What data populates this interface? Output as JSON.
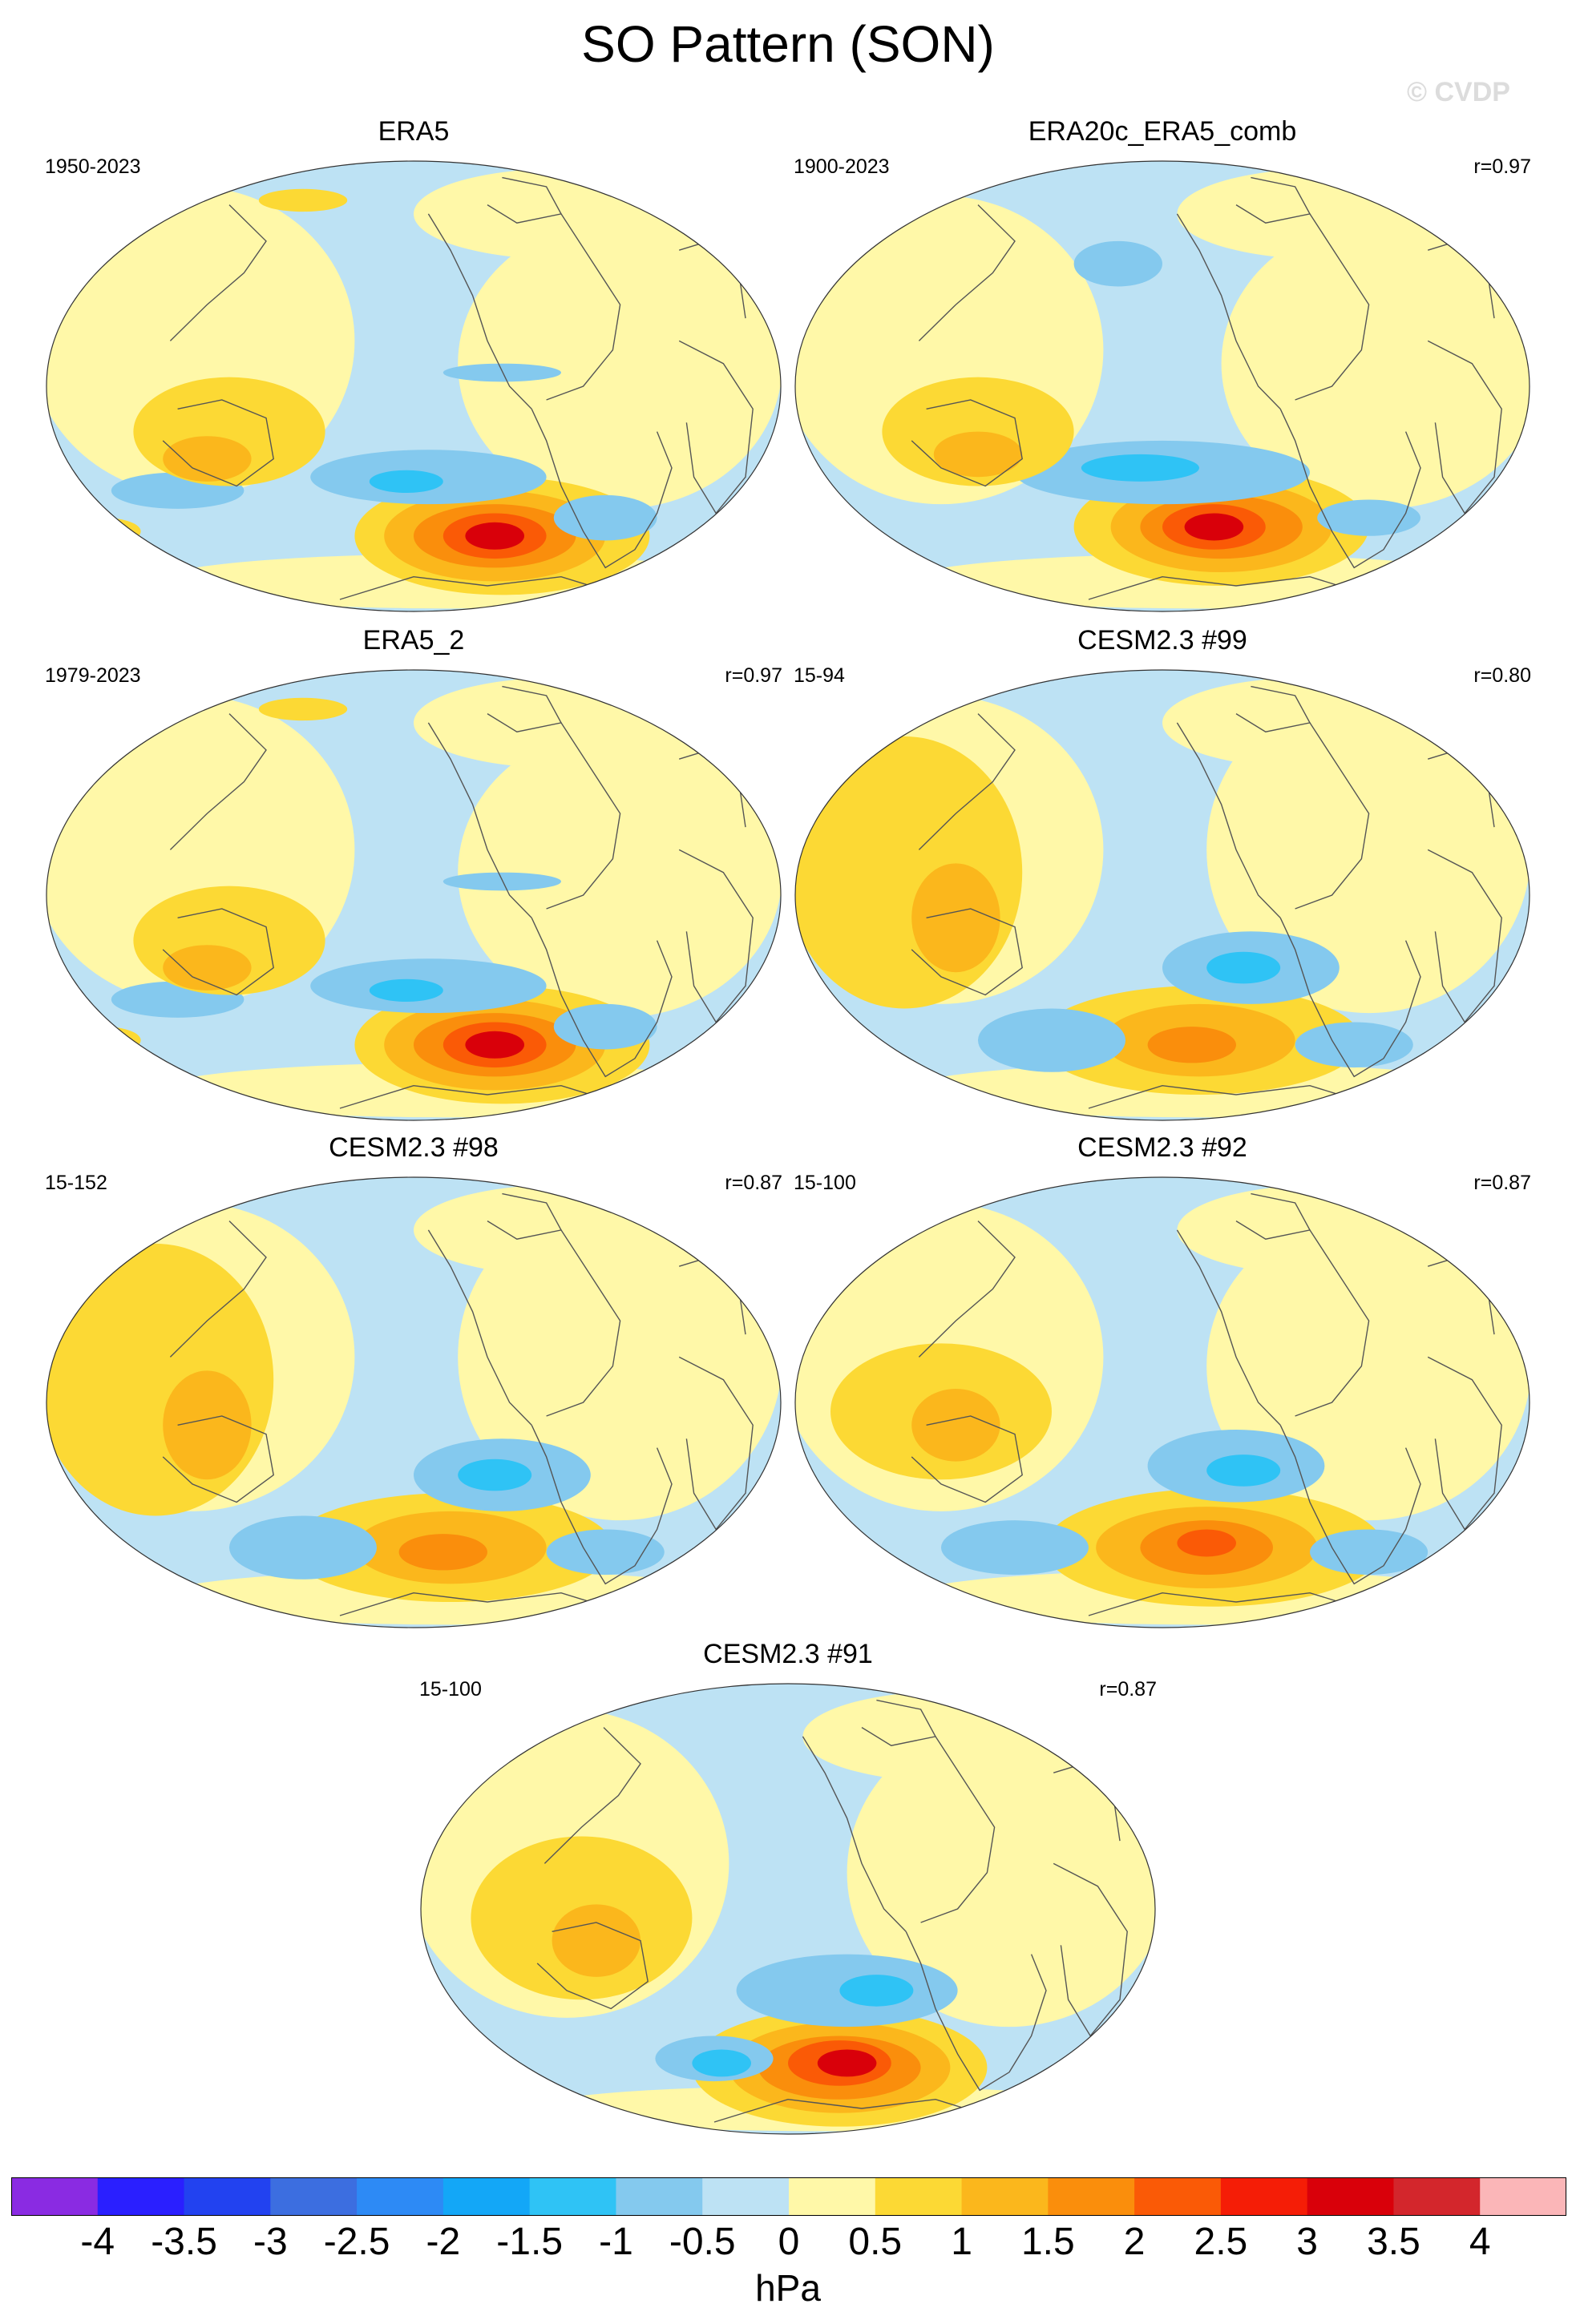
{
  "figure_title": "SO Pattern (SON)",
  "watermark": "© CVDP",
  "panels": [
    {
      "title": "ERA5",
      "years": "1950-2023",
      "r": "",
      "style": "obs1"
    },
    {
      "title": "ERA20c_ERA5_comb",
      "years": "1900-2023",
      "r": "r=0.97",
      "style": "obs2"
    },
    {
      "title": "ERA5_2",
      "years": "1979-2023",
      "r": "r=0.97",
      "style": "obs1"
    },
    {
      "title": "CESM2.3 #99",
      "years": "15-94",
      "r": "r=0.80",
      "style": "model_weak"
    },
    {
      "title": "CESM2.3 #98",
      "years": "15-152",
      "r": "r=0.87",
      "style": "model_weak"
    },
    {
      "title": "CESM2.3 #92",
      "years": "15-100",
      "r": "r=0.87",
      "style": "model_mid"
    },
    {
      "title": "CESM2.3 #91",
      "years": "15-100",
      "r": "r=0.87",
      "style": "model_strong"
    }
  ],
  "colorbar": {
    "units": "hPa",
    "tick_labels": [
      "-4",
      "-3.5",
      "-3",
      "-2.5",
      "-2",
      "-1.5",
      "-1",
      "-0.5",
      "0",
      "0.5",
      "1",
      "1.5",
      "2",
      "2.5",
      "3",
      "3.5",
      "4"
    ],
    "colors": [
      "#8a2be2",
      "#2a1fff",
      "#2242f0",
      "#3c6ee0",
      "#2d8af5",
      "#13a7f7",
      "#2fc3f5",
      "#84c9ee",
      "#bde2f4",
      "#fff8a8",
      "#fcd934",
      "#fbb71c",
      "#fa8e0c",
      "#fa5a06",
      "#f51d06",
      "#d9000a",
      "#d3262c",
      "#fbb6b8"
    ]
  },
  "palette": {
    "ocean_neg": "#bde2f4",
    "neutral_pos": "#fff8a8",
    "coast": "#555555"
  }
}
